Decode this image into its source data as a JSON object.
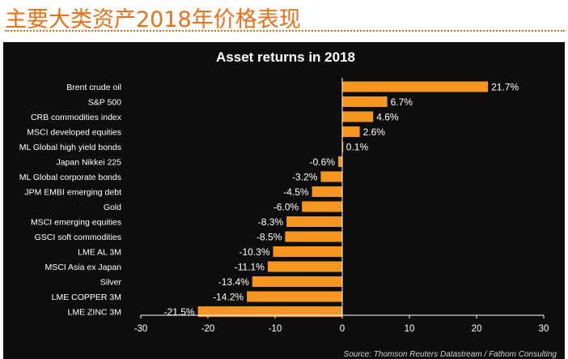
{
  "slide": {
    "title": "主要大类资产2018年价格表现"
  },
  "chart_data": {
    "type": "bar",
    "orientation": "horizontal",
    "title": "Asset returns in 2018",
    "categories": [
      "Brent crude oil",
      "S&P 500",
      "CRB commodities index",
      "MSCI developed equities",
      "ML Global high yield bonds",
      "Japan Nikkei 225",
      "ML Global corporate bonds",
      "JPM EMBI emerging debt",
      "Gold",
      "MSCI emerging equities",
      "GSCI soft commodities",
      "LME AL 3M",
      "MSCI Asia ex Japan",
      "Silver",
      "LME COPPER 3M",
      "LME ZINC 3M"
    ],
    "values": [
      21.7,
      6.7,
      4.6,
      2.6,
      0.1,
      -0.6,
      -3.2,
      -4.5,
      -6.0,
      -8.3,
      -8.5,
      -10.3,
      -11.1,
      -13.4,
      -14.2,
      -21.5
    ],
    "value_labels": [
      "21.7%",
      "6.7%",
      "4.6%",
      "2.6%",
      "0.1%",
      "-0.6%",
      "-3.2%",
      "-4.5%",
      "-6.0%",
      "-8.3%",
      "-8.5%",
      "-10.3%",
      "-11.1%",
      "-13.4%",
      "-14.2%",
      "-21.5%"
    ],
    "xlim": [
      -30,
      30
    ],
    "xticks": [
      "-30",
      "-20",
      "-10",
      "0",
      "10",
      "20",
      "30"
    ],
    "xlabel": "",
    "ylabel": "",
    "grid": false,
    "bar_color": "#f5961e",
    "background": "#0d0d0d",
    "source": "Source: Thomson Reuters Datastream / Fathom Consulting"
  }
}
